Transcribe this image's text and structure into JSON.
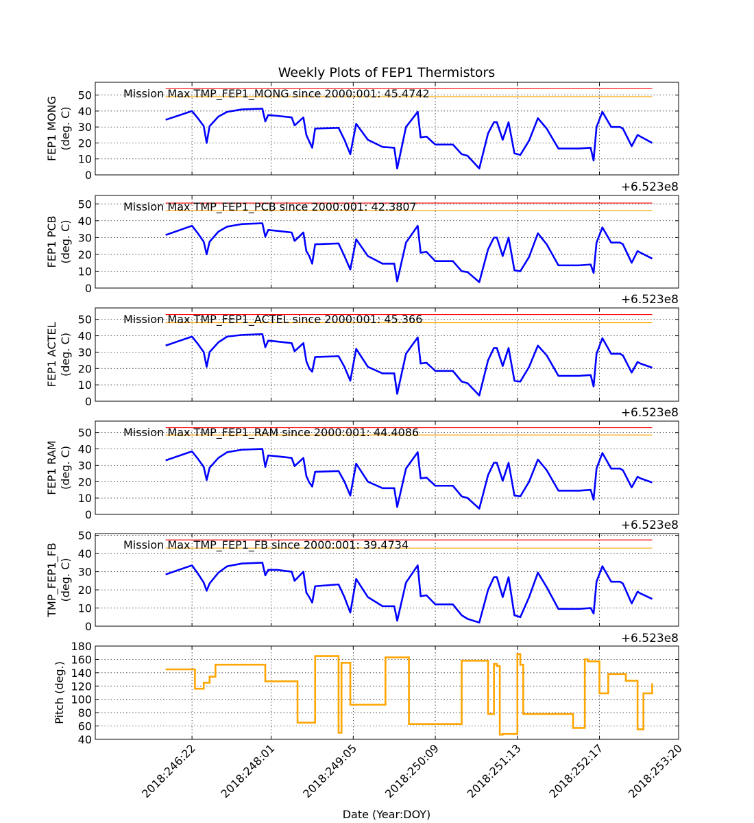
{
  "chart_data": {
    "type": "line",
    "title": "Weekly Plots of FEP1 Thermistors",
    "xlabel": "Date (Year:DOY)",
    "x_tick_labels": [
      "2018:246:22",
      "2018:248:01",
      "2018:249:05",
      "2018:250:09",
      "2018:251:13",
      "2018:252:17",
      "2018:253:20"
    ],
    "x_range": [
      "2018:245:13",
      "2018:253:20"
    ],
    "y_offset_label": "+6.523e8",
    "grid": true,
    "colors": {
      "series": "#0000ff",
      "red_limit": "#ff0000",
      "yellow_limit": "#ffa500",
      "pitch": "#ffa500"
    },
    "panels": [
      {
        "id": "mong",
        "ylabel": [
          "FEP1 MONG",
          "(deg. C)"
        ],
        "ylim": [
          0,
          58
        ],
        "yticks": [
          0,
          10,
          20,
          30,
          40,
          50
        ],
        "annotation": "Mission Max TMP_FEP1_MONG since 2000:001: 45.4742",
        "red_limit": 54,
        "yellow_limit": 49,
        "series": {
          "x": [
            "2018:246:13",
            "2018:246:22",
            "2018:247:00",
            "2018:247:02",
            "2018:247:03",
            "2018:247:04",
            "2018:247:07",
            "2018:247:10",
            "2018:247:15",
            "2018:247:22",
            "2018:247:23",
            "2018:248:00",
            "2018:248:03",
            "2018:248:08",
            "2018:248:09",
            "2018:248:12",
            "2018:248:13",
            "2018:248:14",
            "2018:248:15",
            "2018:248:16",
            "2018:249:00",
            "2018:249:02",
            "2018:249:04",
            "2018:249:06",
            "2018:249:10",
            "2018:249:15",
            "2018:249:19",
            "2018:249:20",
            "2018:249:23",
            "2018:250:03",
            "2018:250:04",
            "2018:250:06",
            "2018:250:09",
            "2018:250:10",
            "2018:250:11",
            "2018:250:15",
            "2018:250:18",
            "2018:250:20",
            "2018:251:00",
            "2018:251:03",
            "2018:251:05",
            "2018:251:06",
            "2018:251:08",
            "2018:251:10",
            "2018:251:12",
            "2018:251:14",
            "2018:251:17",
            "2018:251:20",
            "2018:251:23",
            "2018:252:03",
            "2018:252:06",
            "2018:252:10",
            "2018:252:14",
            "2018:252:15",
            "2018:252:16",
            "2018:252:18",
            "2018:252:21",
            "2018:253:00",
            "2018:253:01",
            "2018:253:04",
            "2018:253:06",
            "2018:253:07",
            "2018:253:11"
          ],
          "y": [
            34.5,
            40,
            35.5,
            30.5,
            20,
            30.5,
            36.5,
            39.5,
            41,
            41.5,
            33.5,
            37.5,
            37,
            36,
            31,
            36,
            25,
            21,
            17,
            29,
            29.5,
            22,
            13,
            32,
            22,
            17.5,
            17,
            4,
            30,
            39.5,
            23.5,
            24,
            19,
            19,
            19,
            19,
            13,
            12,
            4,
            26,
            33,
            33,
            22,
            33,
            13.5,
            12.5,
            21.5,
            35.5,
            29,
            16.5,
            16.5,
            16.5,
            17,
            9,
            30,
            39.5,
            30,
            30,
            29,
            18,
            25,
            24,
            20
          ]
        }
      },
      {
        "id": "pcb",
        "ylabel": [
          "FEP1 PCB",
          "(deg. C)"
        ],
        "ylim": [
          0,
          55
        ],
        "yticks": [
          0,
          10,
          20,
          30,
          40,
          50
        ],
        "annotation": "Mission Max TMP_FEP1_PCB since 2000:001: 42.3807",
        "red_limit": 50.5,
        "yellow_limit": 46,
        "series": {
          "x": [
            "2018:246:13",
            "2018:246:22",
            "2018:247:00",
            "2018:247:02",
            "2018:247:03",
            "2018:247:04",
            "2018:247:07",
            "2018:247:10",
            "2018:247:15",
            "2018:247:22",
            "2018:247:23",
            "2018:248:00",
            "2018:248:03",
            "2018:248:08",
            "2018:248:09",
            "2018:248:12",
            "2018:248:13",
            "2018:248:14",
            "2018:248:15",
            "2018:248:16",
            "2018:249:00",
            "2018:249:02",
            "2018:249:04",
            "2018:249:06",
            "2018:249:10",
            "2018:249:15",
            "2018:249:19",
            "2018:249:20",
            "2018:249:23",
            "2018:250:03",
            "2018:250:04",
            "2018:250:06",
            "2018:250:09",
            "2018:250:10",
            "2018:250:11",
            "2018:250:15",
            "2018:250:18",
            "2018:250:20",
            "2018:251:00",
            "2018:251:03",
            "2018:251:05",
            "2018:251:06",
            "2018:251:08",
            "2018:251:10",
            "2018:251:12",
            "2018:251:14",
            "2018:251:17",
            "2018:251:20",
            "2018:251:23",
            "2018:252:03",
            "2018:252:06",
            "2018:252:10",
            "2018:252:14",
            "2018:252:15",
            "2018:252:16",
            "2018:252:18",
            "2018:252:21",
            "2018:253:00",
            "2018:253:01",
            "2018:253:04",
            "2018:253:06",
            "2018:253:07",
            "2018:253:11"
          ],
          "y": [
            31.5,
            37,
            32.5,
            27.5,
            20,
            27.5,
            33.5,
            36.5,
            38,
            38.5,
            30.5,
            34.5,
            34,
            33,
            28,
            33,
            22,
            19,
            14.5,
            26,
            26.5,
            19,
            11,
            29,
            19,
            14.5,
            14.5,
            4,
            27,
            37,
            21,
            21.5,
            16,
            16,
            16,
            16,
            10,
            9.5,
            3.5,
            23,
            30,
            30,
            19,
            30,
            10.5,
            10,
            18.5,
            32.5,
            26,
            13.5,
            13.5,
            13.5,
            14,
            9,
            27,
            36,
            27,
            27,
            26,
            15,
            22,
            21,
            17.5
          ]
        }
      },
      {
        "id": "actel",
        "ylabel": [
          "FEP1 ACTEL",
          "(deg. C)"
        ],
        "ylim": [
          0,
          57
        ],
        "yticks": [
          0,
          10,
          20,
          30,
          40,
          50
        ],
        "annotation": "Mission Max TMP_FEP1_ACTEL since 2000:001: 45.366",
        "red_limit": 53,
        "yellow_limit": 48,
        "series": {
          "x": [
            "2018:246:13",
            "2018:246:22",
            "2018:247:00",
            "2018:247:02",
            "2018:247:03",
            "2018:247:04",
            "2018:247:07",
            "2018:247:10",
            "2018:247:15",
            "2018:247:22",
            "2018:247:23",
            "2018:248:00",
            "2018:248:03",
            "2018:248:08",
            "2018:248:09",
            "2018:248:12",
            "2018:248:13",
            "2018:248:14",
            "2018:248:15",
            "2018:248:16",
            "2018:249:00",
            "2018:249:02",
            "2018:249:04",
            "2018:249:06",
            "2018:249:10",
            "2018:249:15",
            "2018:249:19",
            "2018:249:20",
            "2018:249:23",
            "2018:250:03",
            "2018:250:04",
            "2018:250:06",
            "2018:250:09",
            "2018:250:10",
            "2018:250:11",
            "2018:250:15",
            "2018:250:18",
            "2018:250:20",
            "2018:251:00",
            "2018:251:03",
            "2018:251:05",
            "2018:251:06",
            "2018:251:08",
            "2018:251:10",
            "2018:251:12",
            "2018:251:14",
            "2018:251:17",
            "2018:251:20",
            "2018:251:23",
            "2018:252:03",
            "2018:252:06",
            "2018:252:10",
            "2018:252:14",
            "2018:252:15",
            "2018:252:16",
            "2018:252:18",
            "2018:252:21",
            "2018:253:00",
            "2018:253:01",
            "2018:253:04",
            "2018:253:06",
            "2018:253:07",
            "2018:253:11"
          ],
          "y": [
            34,
            39.5,
            35,
            30,
            21,
            30,
            36,
            39.5,
            40.5,
            41,
            33,
            37,
            36.5,
            35.5,
            30.5,
            35.5,
            24.5,
            20,
            18,
            27,
            27.5,
            21,
            12.5,
            32,
            21,
            17,
            17,
            4.5,
            29,
            39,
            23,
            23.5,
            18.5,
            18.5,
            18.5,
            18.5,
            12,
            11,
            3.5,
            25,
            32.5,
            32.5,
            21.5,
            32.5,
            12.5,
            12,
            21,
            34,
            28,
            15.5,
            15.5,
            15.5,
            16,
            9,
            29,
            38.5,
            29,
            29,
            28,
            17.5,
            24,
            23,
            20.5
          ]
        }
      },
      {
        "id": "ram",
        "ylabel": [
          "FEP1 RAM",
          "(deg. C)"
        ],
        "ylim": [
          0,
          57
        ],
        "yticks": [
          0,
          10,
          20,
          30,
          40,
          50
        ],
        "annotation": "Mission Max TMP_FEP1_RAM since 2000:001: 44.4086",
        "red_limit": 53,
        "yellow_limit": 48.5,
        "series": {
          "x": [
            "2018:246:13",
            "2018:246:22",
            "2018:247:00",
            "2018:247:02",
            "2018:247:03",
            "2018:247:04",
            "2018:247:07",
            "2018:247:10",
            "2018:247:15",
            "2018:247:22",
            "2018:247:23",
            "2018:248:00",
            "2018:248:03",
            "2018:248:08",
            "2018:248:09",
            "2018:248:12",
            "2018:248:13",
            "2018:248:14",
            "2018:248:15",
            "2018:248:16",
            "2018:249:00",
            "2018:249:02",
            "2018:249:04",
            "2018:249:06",
            "2018:249:10",
            "2018:249:15",
            "2018:249:19",
            "2018:249:20",
            "2018:249:23",
            "2018:250:03",
            "2018:250:04",
            "2018:250:06",
            "2018:250:09",
            "2018:250:10",
            "2018:250:11",
            "2018:250:15",
            "2018:250:18",
            "2018:250:20",
            "2018:251:00",
            "2018:251:03",
            "2018:251:05",
            "2018:251:06",
            "2018:251:08",
            "2018:251:10",
            "2018:251:12",
            "2018:251:14",
            "2018:251:17",
            "2018:251:20",
            "2018:251:23",
            "2018:252:03",
            "2018:252:06",
            "2018:252:10",
            "2018:252:14",
            "2018:252:15",
            "2018:252:16",
            "2018:252:18",
            "2018:252:21",
            "2018:253:00",
            "2018:253:01",
            "2018:253:04",
            "2018:253:06",
            "2018:253:07",
            "2018:253:11"
          ],
          "y": [
            33,
            38.5,
            34,
            29,
            21,
            28.5,
            34.5,
            38,
            39.5,
            40,
            29,
            36,
            35.5,
            34.5,
            29.5,
            34.5,
            23.5,
            19.5,
            17,
            26,
            26.5,
            20,
            11.5,
            31,
            20,
            16,
            16,
            4.5,
            28,
            38,
            22,
            22.5,
            17.5,
            17.5,
            17.5,
            17.5,
            11,
            10,
            3.5,
            24,
            31.5,
            31.5,
            20.5,
            31.5,
            11.5,
            11,
            20,
            33.5,
            27,
            14.5,
            14.5,
            14.5,
            15,
            9,
            28,
            37.5,
            28,
            28,
            27,
            16.5,
            23,
            22,
            19.5
          ]
        }
      },
      {
        "id": "fb",
        "ylabel": [
          "TMP_FEP1_FB",
          "(deg. C)"
        ],
        "ylim": [
          0,
          51
        ],
        "yticks": [
          0,
          10,
          20,
          30,
          40,
          50
        ],
        "annotation": "Mission Max TMP_FEP1_FB since 2000:001: 39.4734",
        "red_limit": 47.5,
        "yellow_limit": 43,
        "series": {
          "x": [
            "2018:246:13",
            "2018:246:22",
            "2018:247:00",
            "2018:247:02",
            "2018:247:03",
            "2018:247:04",
            "2018:247:07",
            "2018:247:10",
            "2018:247:15",
            "2018:247:22",
            "2018:247:23",
            "2018:248:00",
            "2018:248:03",
            "2018:248:08",
            "2018:248:09",
            "2018:248:12",
            "2018:248:13",
            "2018:248:14",
            "2018:248:15",
            "2018:248:16",
            "2018:249:00",
            "2018:249:02",
            "2018:249:04",
            "2018:249:06",
            "2018:249:10",
            "2018:249:15",
            "2018:249:19",
            "2018:249:20",
            "2018:249:23",
            "2018:250:03",
            "2018:250:04",
            "2018:250:06",
            "2018:250:09",
            "2018:250:10",
            "2018:250:11",
            "2018:250:15",
            "2018:250:18",
            "2018:250:20",
            "2018:251:00",
            "2018:251:03",
            "2018:251:05",
            "2018:251:06",
            "2018:251:08",
            "2018:251:10",
            "2018:251:12",
            "2018:251:14",
            "2018:251:17",
            "2018:251:20",
            "2018:251:23",
            "2018:252:03",
            "2018:252:06",
            "2018:252:10",
            "2018:252:14",
            "2018:252:15",
            "2018:252:16",
            "2018:252:18",
            "2018:252:21",
            "2018:253:00",
            "2018:253:01",
            "2018:253:04",
            "2018:253:06",
            "2018:253:07",
            "2018:253:11"
          ],
          "y": [
            28.5,
            33.5,
            29,
            24,
            19.5,
            23.5,
            29.5,
            33,
            34.5,
            35,
            28,
            31,
            31,
            30,
            25,
            30,
            18.5,
            16,
            13,
            22,
            23,
            16,
            7.5,
            26,
            16,
            11,
            11,
            3,
            24,
            33.5,
            16.5,
            17,
            12,
            12,
            12,
            12,
            6,
            4,
            2,
            20,
            27,
            27,
            16,
            27,
            6,
            5,
            16,
            29.5,
            21.5,
            9.5,
            9.5,
            9.5,
            10,
            7,
            24.5,
            33,
            24.5,
            24.5,
            23.5,
            12.5,
            19,
            18,
            15
          ]
        }
      },
      {
        "id": "pitch",
        "ylabel": [
          "Pitch (deg.)"
        ],
        "ylim": [
          40,
          180
        ],
        "yticks": [
          40,
          60,
          80,
          100,
          120,
          140,
          160,
          180
        ],
        "step": true,
        "series": {
          "x": [
            "2018:246:13",
            "2018:246:23",
            "2018:247:02",
            "2018:247:04",
            "2018:247:06",
            "2018:247:08",
            "2018:247:23",
            "2018:248:10",
            "2018:248:16",
            "2018:249:00",
            "2018:249:01",
            "2018:249:02",
            "2018:249:04",
            "2018:249:16",
            "2018:250:00",
            "2018:250:18",
            "2018:251:03",
            "2018:251:05",
            "2018:251:06",
            "2018:251:07",
            "2018:251:08",
            "2018:251:13",
            "2018:251:14",
            "2018:251:15",
            "2018:251:17",
            "2018:252:08",
            "2018:252:12",
            "2018:252:13",
            "2018:252:17",
            "2018:252:20",
            "2018:253:02",
            "2018:253:06",
            "2018:253:08"
          ],
          "y": [
            145,
            116,
            125,
            134,
            152,
            152,
            127,
            65,
            165,
            50,
            155,
            155,
            92,
            163,
            63,
            158,
            78,
            153,
            150,
            47,
            48,
            168,
            152,
            78,
            78,
            57,
            160,
            157,
            109,
            138,
            128,
            55,
            109
          ]
        },
        "x_end": "2018:253:11",
        "y_end": 124
      }
    ]
  }
}
